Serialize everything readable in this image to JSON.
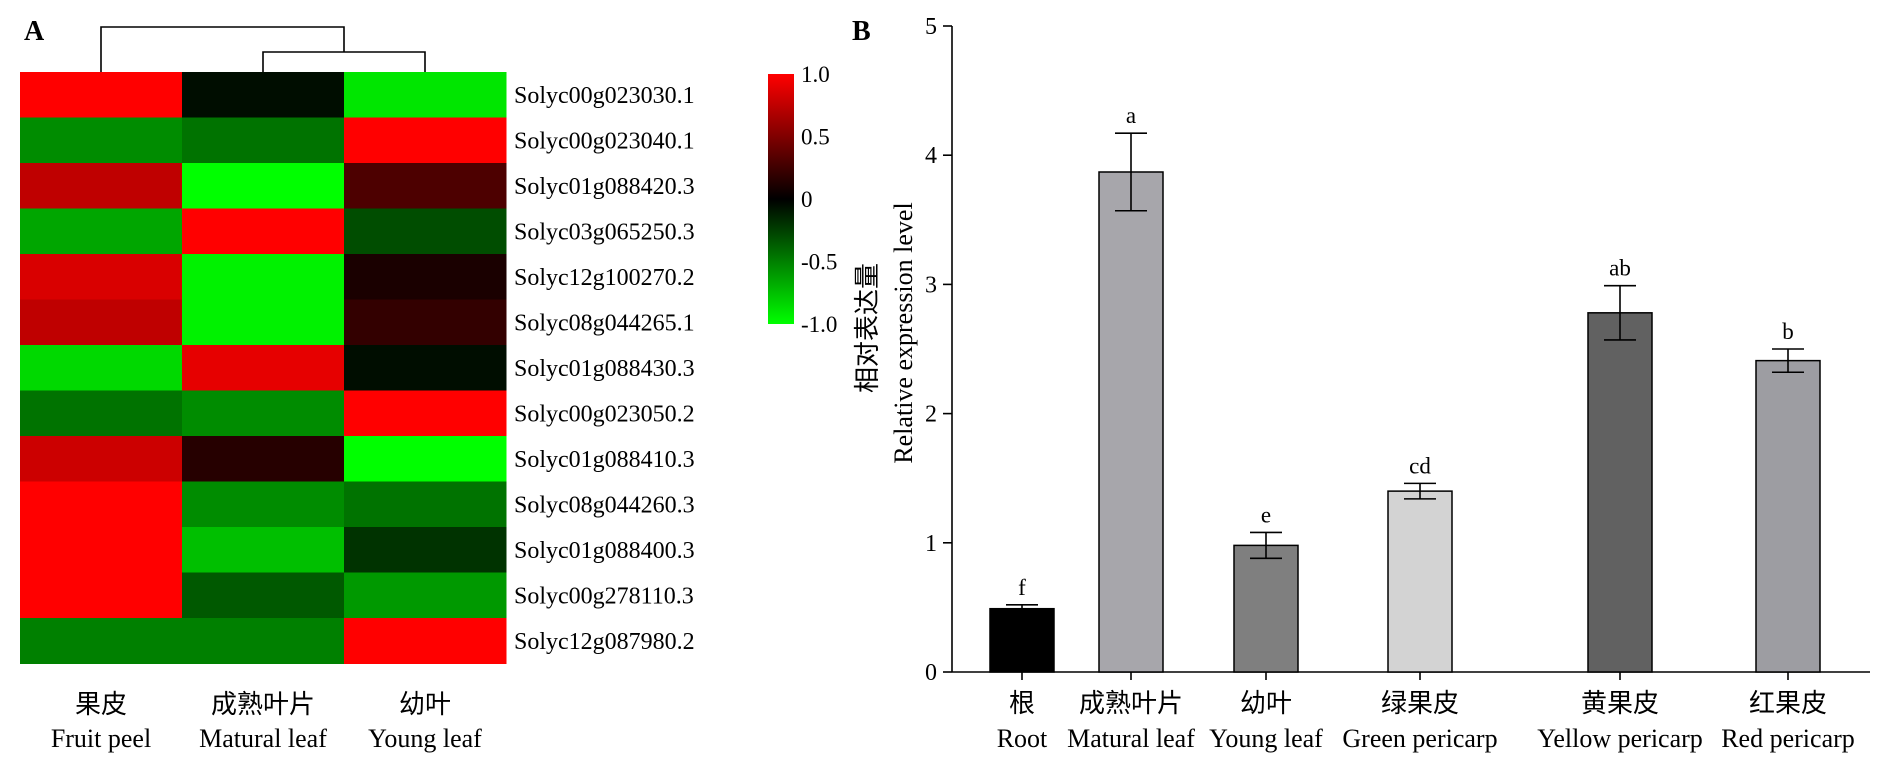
{
  "panel_a_label": "A",
  "panel_b_label": "B",
  "colors": {
    "low": "#00ff00",
    "mid": "#000000",
    "high": "#ff0000",
    "bar_outline": "#000000"
  },
  "chart_data": [
    {
      "type": "heatmap",
      "panel": "A",
      "columns": [
        {
          "zh": "果皮",
          "en": "Fruit peel"
        },
        {
          "zh": "成熟叶片",
          "en": "Matural leaf"
        },
        {
          "zh": "幼叶",
          "en": "Young leaf"
        }
      ],
      "rows": [
        "Solyc00g023030.1",
        "Solyc00g023040.1",
        "Solyc01g088420.3",
        "Solyc03g065250.3",
        "Solyc12g100270.2",
        "Solyc08g044265.1",
        "Solyc01g088430.3",
        "Solyc00g023050.2",
        "Solyc01g088410.3",
        "Solyc08g044260.3",
        "Solyc01g088400.3",
        "Solyc00g278110.3",
        "Solyc12g087980.2"
      ],
      "values": [
        [
          1.0,
          -0.05,
          -0.9
        ],
        [
          -0.55,
          -0.45,
          1.0
        ],
        [
          0.75,
          -1.0,
          0.3
        ],
        [
          -0.65,
          1.0,
          -0.3
        ],
        [
          0.85,
          -0.95,
          0.1
        ],
        [
          0.75,
          -0.95,
          0.2
        ],
        [
          -0.85,
          0.9,
          -0.05
        ],
        [
          -0.45,
          -0.55,
          1.0
        ],
        [
          0.8,
          0.15,
          -1.0
        ],
        [
          1.0,
          -0.55,
          -0.45
        ],
        [
          1.0,
          -0.75,
          -0.2
        ],
        [
          1.0,
          -0.35,
          -0.6
        ],
        [
          -0.5,
          -0.5,
          1.0
        ]
      ],
      "colorbar": {
        "range": [
          -1.0,
          1.0
        ],
        "ticks": [
          {
            "value": 1.0,
            "label": "1.0"
          },
          {
            "value": 0.5,
            "label": "0.5"
          },
          {
            "value": 0.0,
            "label": "0"
          },
          {
            "value": -0.5,
            "label": "-0.5"
          },
          {
            "value": -1.0,
            "label": "-1.0"
          }
        ]
      },
      "dendrogram": "columns: (果皮, (成熟叶片, 幼叶))"
    },
    {
      "type": "bar",
      "panel": "B",
      "ylabel_zh": "相对表达量",
      "ylabel_en": "Relative expression level",
      "ylim": [
        0,
        5
      ],
      "yticks": [
        0,
        1,
        2,
        3,
        4,
        5
      ],
      "categories": [
        {
          "zh": "根",
          "en": "Root"
        },
        {
          "zh": "成熟叶片",
          "en": "Matural leaf"
        },
        {
          "zh": "幼叶",
          "en": "Young leaf"
        },
        {
          "zh": "绿果皮",
          "en": "Green pericarp"
        },
        {
          "zh": "黄果皮",
          "en": "Yellow pericarp"
        },
        {
          "zh": "红果皮",
          "en": "Red pericarp"
        }
      ],
      "values": [
        0.49,
        3.87,
        0.98,
        1.4,
        2.78,
        2.41
      ],
      "errors": [
        0.03,
        0.3,
        0.1,
        0.06,
        0.21,
        0.09
      ],
      "significance": [
        "f",
        "a",
        "e",
        "cd",
        "ab",
        "b"
      ],
      "bar_colors": [
        "#000000",
        "#a7a6ab",
        "#7f7f7f",
        "#d3d3d3",
        "#616161",
        "#9d9da2"
      ]
    }
  ]
}
